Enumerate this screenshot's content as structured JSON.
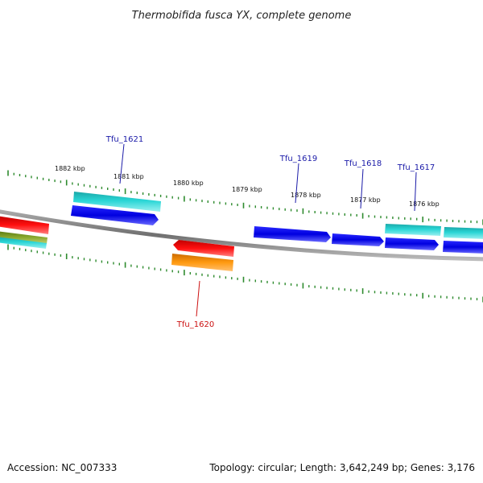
{
  "title": "Thermobifida fusca YX, complete genome",
  "footer": {
    "accession": "Accession: NC_007333",
    "summary": "Topology: circular; Length: 3,642,249 bp; Genes: 3,176"
  },
  "colors": {
    "backbone": "#888888",
    "tick": "#2e8b2e",
    "label_blue": "#1a1aa8",
    "label_red": "#cc1010"
  },
  "ticks": [
    "1882 kbp",
    "1881 kbp",
    "1880 kbp",
    "1879 kbp",
    "1878 kbp",
    "1877 kbp",
    "1876 kbp"
  ],
  "genes": [
    {
      "name": "Tfu_1621",
      "strand": "forward"
    },
    {
      "name": "Tfu_1619",
      "strand": "forward"
    },
    {
      "name": "Tfu_1618",
      "strand": "forward"
    },
    {
      "name": "Tfu_1617",
      "strand": "forward"
    },
    {
      "name": "Tfu_1620",
      "strand": "reverse"
    }
  ]
}
